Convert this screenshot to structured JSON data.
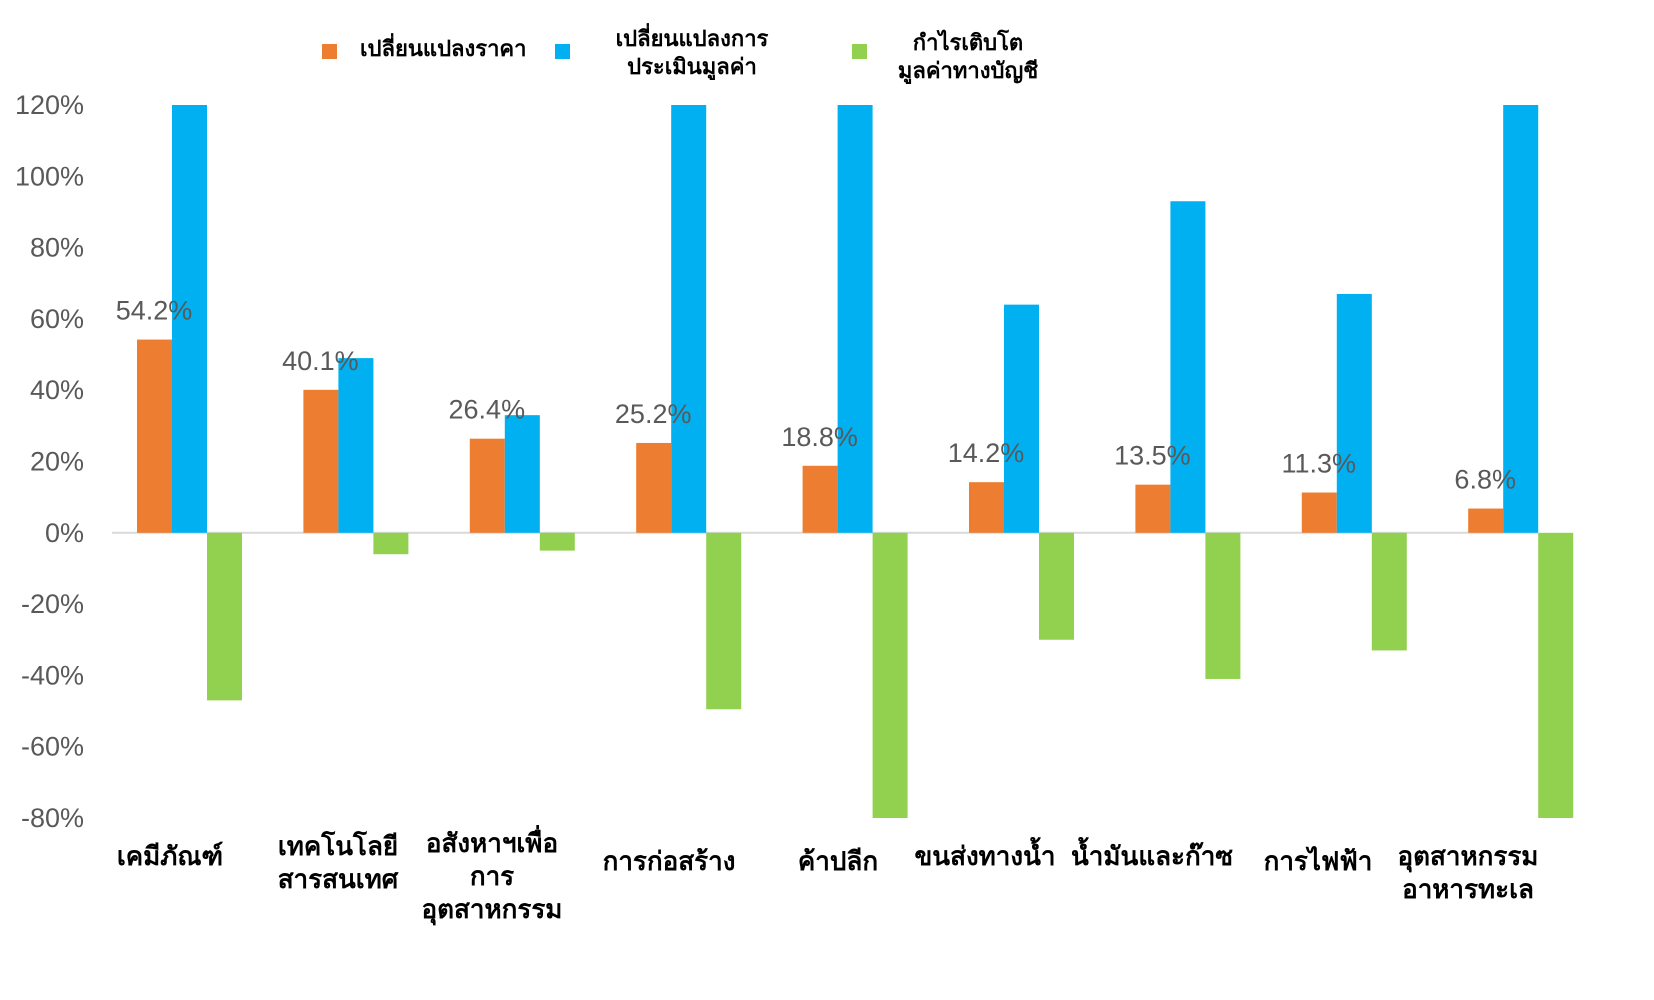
{
  "chart_data": {
    "type": "bar",
    "categories": [
      [
        "เคมีภัณฑ์"
      ],
      [
        "เทคโนโลยี",
        "สารสนเทศ"
      ],
      [
        "อสังหาฯเพื่อ",
        "การ",
        "อุตสาหกรรม"
      ],
      [
        "การก่อสร้าง"
      ],
      [
        "ค้าปลีก"
      ],
      [
        "ขนส่งทางน้ำ"
      ],
      [
        "น้ำมันและก๊าซ"
      ],
      [
        "การไฟฟ้า"
      ],
      [
        "อุตสาหกรรม",
        "อาหารทะเล"
      ]
    ],
    "series": [
      {
        "name": "เปลี่ยนแปลงราคา",
        "color": "#ED7D31",
        "values": [
          54.2,
          40.1,
          26.4,
          25.2,
          18.8,
          14.2,
          13.5,
          11.3,
          6.8
        ],
        "labels": [
          "54.2%",
          "40.1%",
          "26.4%",
          "25.2%",
          "18.8%",
          "14.2%",
          "13.5%",
          "11.3%",
          "6.8%"
        ]
      },
      {
        "name": "เปลี่ยนแปลงการประเมินมูลค่า",
        "legend_lines": [
          "เปลี่ยนแปลงการ",
          "ประเมินมูลค่า"
        ],
        "color": "#00B0F0",
        "values": [
          120,
          49,
          33,
          120,
          120,
          64,
          93,
          67,
          120
        ]
      },
      {
        "name": "กำไรเติบโตมูลค่าทางบัญชี",
        "legend_lines": [
          "กำไรเติบโต",
          "มูลค่าทางบัญชี"
        ],
        "color": "#92D050",
        "values": [
          -47,
          -6,
          -5,
          -49.5,
          -80.5,
          -30,
          -41,
          -33,
          -80
        ]
      }
    ],
    "yticks": [
      "120%",
      "100%",
      "80%",
      "60%",
      "40%",
      "20%",
      "0%",
      "-20%",
      "-40%",
      "-60%",
      "-80%"
    ],
    "ylim": [
      -80,
      120
    ],
    "grid": false,
    "legend_position": "top"
  }
}
